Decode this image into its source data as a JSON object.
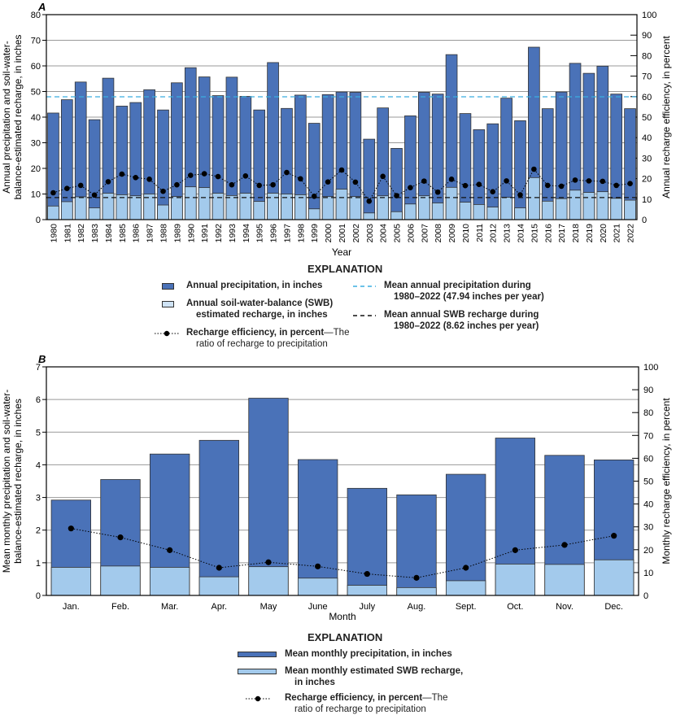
{
  "colors": {
    "precip": "#4a72b8",
    "recharge": "#a3caec",
    "mean_precip_line": "#3aaee0",
    "mean_recharge_line": "#111111",
    "grid": "#999999"
  },
  "chart_data": [
    {
      "panel": "A",
      "type": "bar",
      "stacked_overlay": true,
      "xlabel": "Year",
      "ylabel": "Annual precipitation and soil-water-balance-estimated recharge, in inches",
      "ylabel_lines": [
        "Annual precipitation and soil-water-",
        "balance-estimated recharge, in inches"
      ],
      "y2label": "Annual recharge efficiency, in percent",
      "ylim": [
        0,
        80
      ],
      "yticks": [
        0,
        10,
        20,
        30,
        40,
        50,
        60,
        70,
        80
      ],
      "y2lim": [
        0,
        100
      ],
      "y2ticks": [
        0,
        10,
        20,
        30,
        40,
        50,
        60,
        70,
        80,
        90,
        100
      ],
      "grid": true,
      "categories": [
        "1980",
        "1981",
        "1982",
        "1983",
        "1984",
        "1985",
        "1986",
        "1987",
        "1988",
        "1989",
        "1990",
        "1991",
        "1992",
        "1993",
        "1994",
        "1995",
        "1996",
        "1997",
        "1998",
        "1999",
        "2000",
        "2001",
        "2002",
        "2003",
        "2004",
        "2005",
        "2006",
        "2007",
        "2008",
        "2009",
        "2010",
        "2011",
        "2012",
        "2013",
        "2014",
        "2015",
        "2016",
        "2017",
        "2018",
        "2019",
        "2020",
        "2021",
        "2022"
      ],
      "series": [
        {
          "name": "Annual precipitation, in inches",
          "axis": "left",
          "kind": "bar",
          "values": [
            41.6,
            46.8,
            53.7,
            39.0,
            55.2,
            44.3,
            45.7,
            50.7,
            42.8,
            53.4,
            59.3,
            55.7,
            48.4,
            55.6,
            48.1,
            42.8,
            61.3,
            43.4,
            48.6,
            37.6,
            48.8,
            49.8,
            49.7,
            31.4,
            43.6,
            27.8,
            40.5,
            49.7,
            49.0,
            64.4,
            41.4,
            35.1,
            37.4,
            47.4,
            38.6,
            67.3,
            43.3,
            49.8,
            61.0,
            57.1,
            59.9,
            49.0,
            43.3
          ]
        },
        {
          "name": "Annual soil-water-balance (SWB) estimated recharge, in inches",
          "axis": "left",
          "kind": "bar",
          "values": [
            5.3,
            7.0,
            8.9,
            4.6,
            10.3,
            9.7,
            9.3,
            10.0,
            5.7,
            9.0,
            12.8,
            12.5,
            10.3,
            9.4,
            10.3,
            7.1,
            10.3,
            10.0,
            9.7,
            4.2,
            9.0,
            11.9,
            9.0,
            2.6,
            9.3,
            3.1,
            6.1,
            9.3,
            6.5,
            12.6,
            6.8,
            5.9,
            4.9,
            8.7,
            4.6,
            16.4,
            7.2,
            8.2,
            11.5,
            10.6,
            10.9,
            8.3,
            7.6
          ]
        },
        {
          "name": "Recharge efficiency, in percent",
          "axis": "right",
          "kind": "line",
          "values": [
            13.1,
            15.2,
            16.7,
            12.0,
            18.5,
            22.2,
            20.5,
            19.7,
            13.8,
            17.0,
            21.6,
            22.4,
            21.0,
            17.0,
            21.3,
            16.7,
            17.0,
            23.0,
            19.9,
            11.4,
            18.4,
            24.2,
            18.3,
            9.0,
            21.1,
            11.7,
            15.6,
            18.8,
            13.4,
            19.7,
            16.6,
            17.2,
            13.6,
            18.9,
            12.1,
            24.6,
            16.7,
            16.3,
            19.3,
            18.9,
            18.7,
            16.7,
            17.6
          ]
        }
      ],
      "reference_lines": [
        {
          "name": "Mean annual precipitation during 1980–2022 (47.94 inches per year)",
          "value": 47.94,
          "style": "dashed",
          "color": "#3aaee0"
        },
        {
          "name": "Mean annual SWB recharge during 1980–2022 (8.62 inches per year)",
          "value": 8.62,
          "style": "dashed",
          "color": "#111111"
        }
      ]
    },
    {
      "panel": "B",
      "type": "bar",
      "stacked_overlay": true,
      "xlabel": "Month",
      "ylabel": "Mean monthly precipitation and soil-water-balance-estimated recharge, in inches",
      "ylabel_lines": [
        "Mean monthly precipitation and soil-water-",
        "balance-estimated recharge, in inches"
      ],
      "y2label": "Monthly recharge efficiency, in percent",
      "ylim": [
        0,
        7
      ],
      "yticks": [
        0,
        1,
        2,
        3,
        4,
        5,
        6,
        7
      ],
      "y2lim": [
        0,
        100
      ],
      "y2ticks": [
        0,
        10,
        20,
        30,
        40,
        50,
        60,
        70,
        80,
        90,
        100
      ],
      "grid": true,
      "categories": [
        "Jan.",
        "Feb.",
        "Mar.",
        "Apr.",
        "May",
        "June",
        "July",
        "Aug.",
        "Sept.",
        "Oct.",
        "Nov.",
        "Dec."
      ],
      "series": [
        {
          "name": "Mean monthly precipitation, in inches",
          "axis": "left",
          "kind": "bar",
          "values": [
            2.92,
            3.55,
            4.33,
            4.75,
            6.04,
            4.16,
            3.28,
            3.08,
            3.71,
            4.82,
            4.29,
            4.15
          ]
        },
        {
          "name": "Mean monthly estimated SWB recharge, in inches",
          "axis": "left",
          "kind": "bar",
          "values": [
            0.86,
            0.9,
            0.86,
            0.57,
            0.88,
            0.53,
            0.31,
            0.24,
            0.45,
            0.96,
            0.95,
            1.09
          ]
        },
        {
          "name": "Recharge efficiency, in percent",
          "axis": "right",
          "kind": "line",
          "values": [
            29.3,
            25.4,
            19.8,
            12.1,
            14.5,
            12.7,
            9.4,
            7.7,
            12.1,
            19.8,
            22.1,
            26.1
          ]
        }
      ]
    }
  ],
  "legendA": {
    "title": "EXPLANATION",
    "precip": "Annual precipitation, in inches",
    "recharge_1": "Annual soil-water-balance (SWB)",
    "recharge_2": "estimated recharge, in inches",
    "eff_bold": "Recharge efficiency, in percent",
    "eff_rest": "—The",
    "eff_2": "ratio of recharge to precipitation",
    "meanp_1": "Mean annual precipitation during",
    "meanp_2": "1980–2022 (47.94 inches per year)",
    "meanr_1": "Mean annual SWB recharge during",
    "meanr_2": "1980–2022 (8.62 inches per year)"
  },
  "legendB": {
    "title": "EXPLANATION",
    "precip": "Mean monthly precipitation, in inches",
    "recharge_1": "Mean monthly estimated SWB recharge,",
    "recharge_2": "in inches",
    "eff_bold": "Recharge efficiency, in percent",
    "eff_rest": "—The",
    "eff_2": "ratio of recharge to precipitation"
  }
}
